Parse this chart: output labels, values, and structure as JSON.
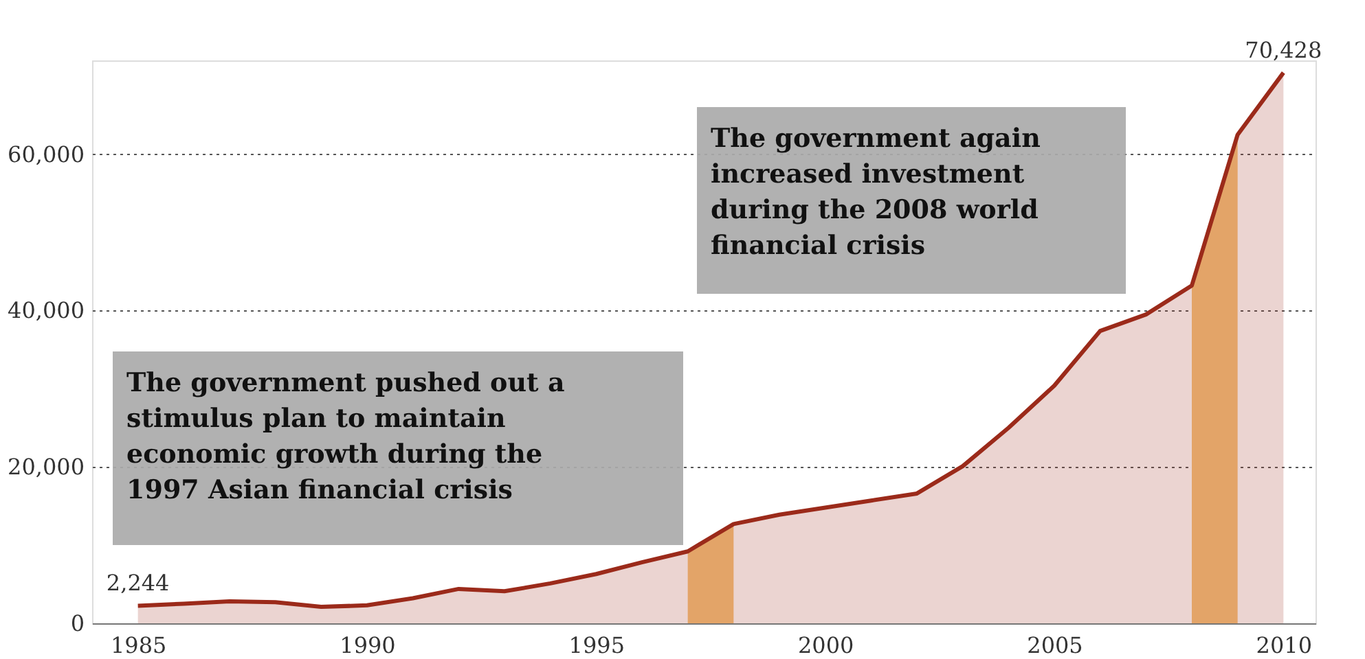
{
  "chart_data": {
    "type": "area",
    "x": [
      1985,
      1986,
      1987,
      1988,
      1989,
      1990,
      1991,
      1992,
      1993,
      1994,
      1995,
      1996,
      1997,
      1998,
      1999,
      2000,
      2001,
      2002,
      2003,
      2004,
      2005,
      2006,
      2007,
      2008,
      2009,
      2010
    ],
    "series": [
      {
        "color": "#9b2a1a",
        "values": [
          2244,
          2500,
          2800,
          2700,
          2100,
          2300,
          3200,
          4400,
          4100,
          5100,
          6300,
          7800,
          9200,
          12700,
          13900,
          14800,
          15700,
          16600,
          20100,
          25000,
          30400,
          37400,
          39500,
          43200,
          62500,
          70428
        ],
        "value_labels": [
          "2,244",
          null,
          null,
          null,
          null,
          null,
          null,
          null,
          null,
          null,
          null,
          null,
          null,
          null,
          null,
          null,
          null,
          null,
          null,
          null,
          null,
          null,
          null,
          null,
          null,
          "70,428"
        ]
      }
    ],
    "xlim": [
      1984,
      2010.7
    ],
    "xticks": [
      1985,
      1990,
      1995,
      2000,
      2005,
      2010
    ],
    "ylim": [
      0,
      72000
    ],
    "yticks": [
      {
        "value": 0,
        "label": "0"
      },
      {
        "value": 20000,
        "label": "20,000"
      },
      {
        "value": 40000,
        "label": "40,000"
      },
      {
        "value": 60000,
        "label": "60,000"
      }
    ],
    "grid": "y",
    "bands": [
      {
        "axis": "x",
        "from": 1997,
        "to": 1998,
        "color": "#e3a468"
      },
      {
        "axis": "x",
        "from": 2008,
        "to": 2009,
        "color": "#e3a468"
      }
    ],
    "annotations": [
      "The government pushed out a stimulus plan to maintain economic growth during the 1997 Asian financial crisis",
      "The government again increased investment during the 2008 world financial crisis"
    ]
  }
}
